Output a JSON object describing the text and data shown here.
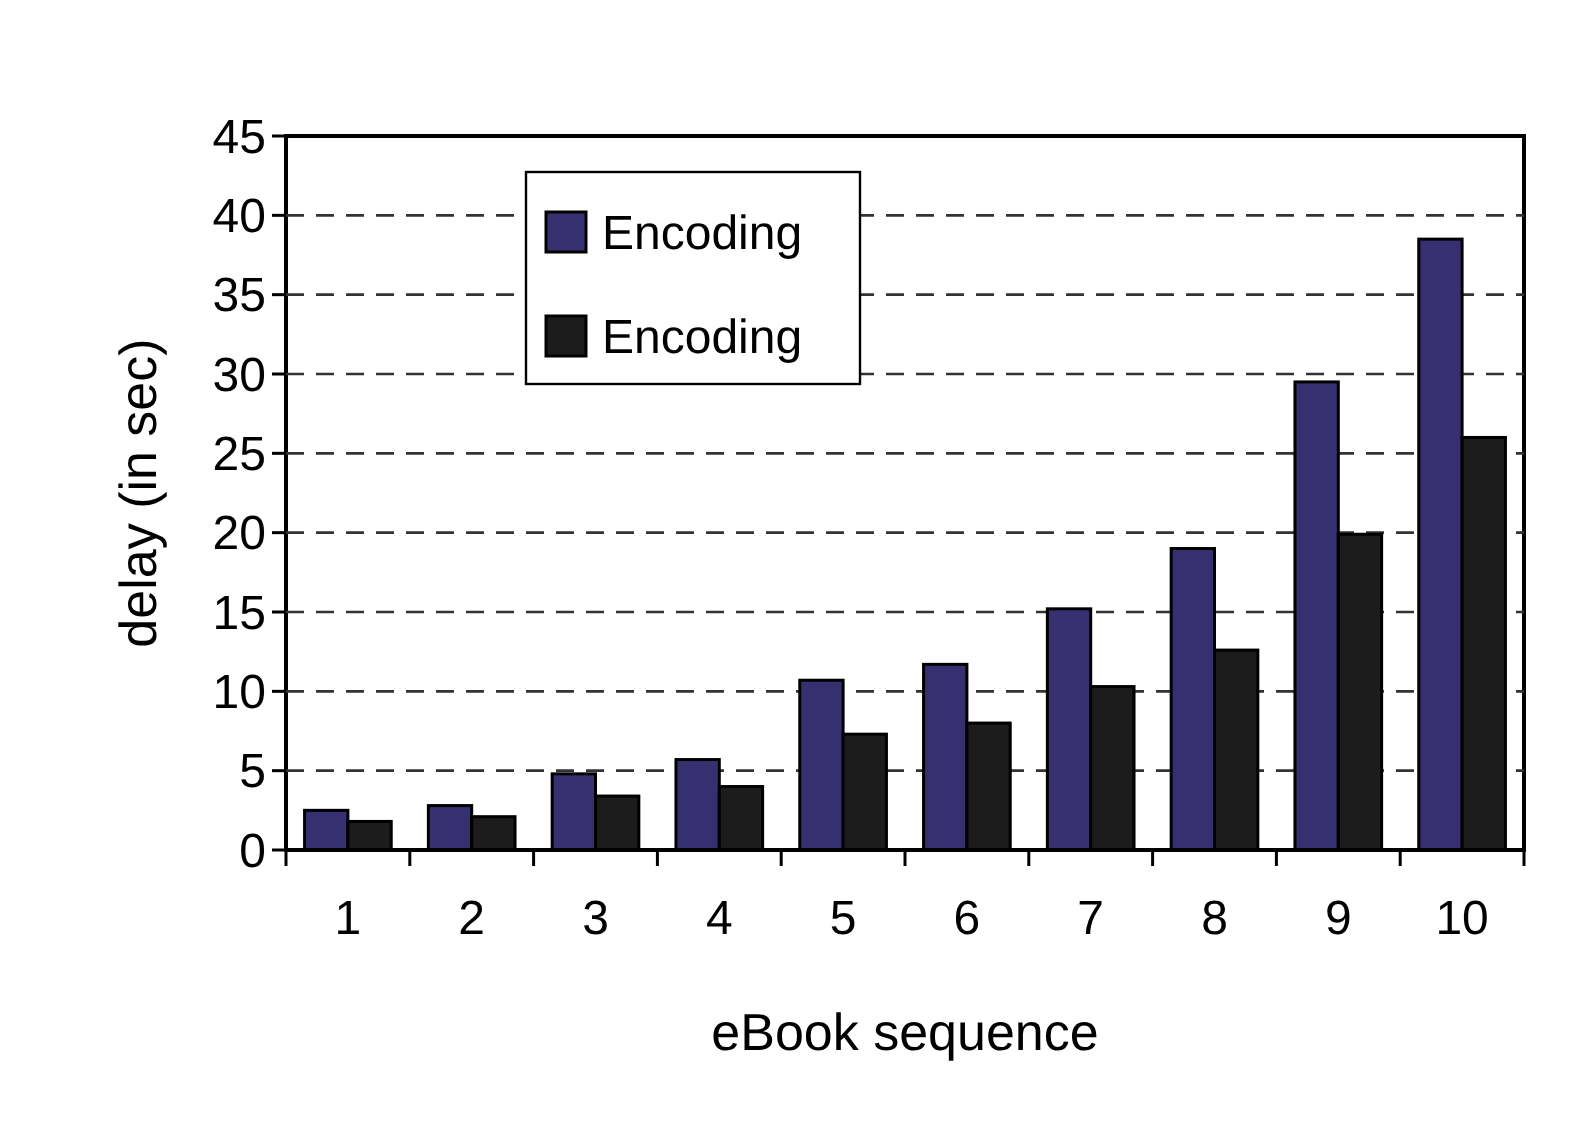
{
  "chart_data": {
    "type": "bar",
    "xlabel": "eBook sequence",
    "ylabel": "delay (in sec)",
    "categories": [
      "1",
      "2",
      "3",
      "4",
      "5",
      "6",
      "7",
      "8",
      "9",
      "10"
    ],
    "series": [
      {
        "name": "Encoding",
        "color": "#363070",
        "values": [
          2.5,
          2.8,
          4.8,
          5.7,
          10.7,
          11.7,
          15.2,
          19.0,
          29.5,
          38.5
        ]
      },
      {
        "name": "Encoding",
        "color": "#1c1c1c",
        "values": [
          1.8,
          2.1,
          3.4,
          4.0,
          7.3,
          8.0,
          10.3,
          12.6,
          19.9,
          26.0
        ]
      }
    ],
    "ylim": [
      0,
      45
    ],
    "yticks": [
      0,
      5,
      10,
      15,
      20,
      25,
      30,
      35,
      40,
      45
    ],
    "grid": "y",
    "legend": "top left"
  }
}
